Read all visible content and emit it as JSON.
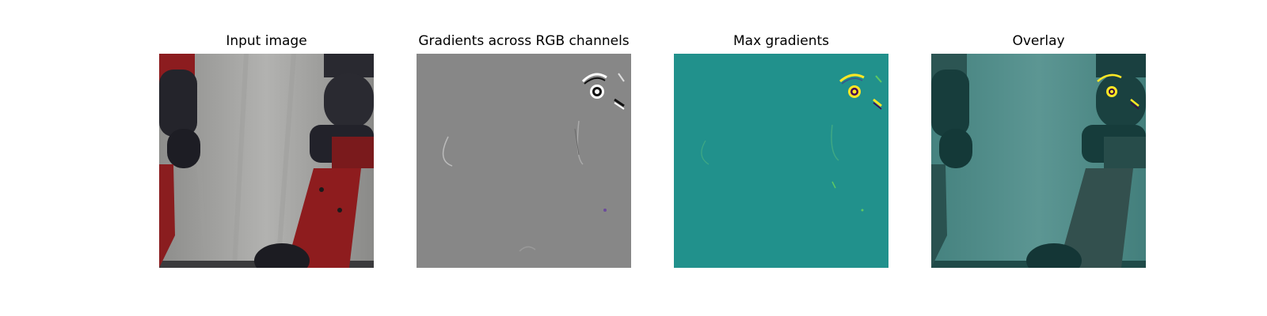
{
  "panels": [
    {
      "title": "Input image"
    },
    {
      "title": "Gradients across RGB channels"
    },
    {
      "title": "Max gradients"
    },
    {
      "title": "Overlay"
    }
  ],
  "colors": {
    "background": "#ffffff",
    "gradient_gray": "#878787",
    "max_gradient_teal": "#21918c",
    "highlight_yellow": "#fde725",
    "robot_red": "#8e1c1e",
    "robot_dark": "#26262d",
    "backdrop_gray": "#b0b0ae"
  }
}
